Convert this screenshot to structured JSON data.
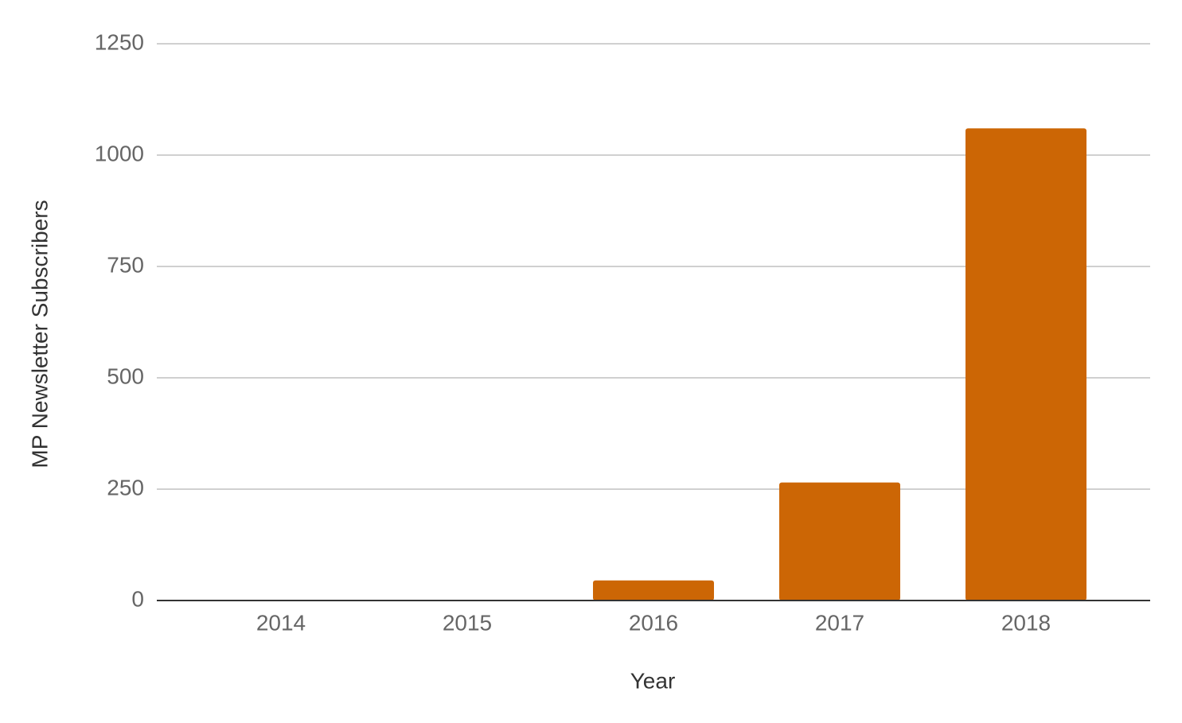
{
  "chart_data": {
    "type": "bar",
    "x_label": "Year",
    "y_label": "MP Newsletter Subscribers",
    "categories": [
      "2014",
      "2015",
      "2016",
      "2017",
      "2018"
    ],
    "values": [
      0,
      0,
      45,
      265,
      1060
    ],
    "color": "#cc6605",
    "ylim": [
      0,
      1250
    ],
    "yticks": [
      0,
      250,
      500,
      750,
      1000,
      1250
    ],
    "grid": true
  }
}
